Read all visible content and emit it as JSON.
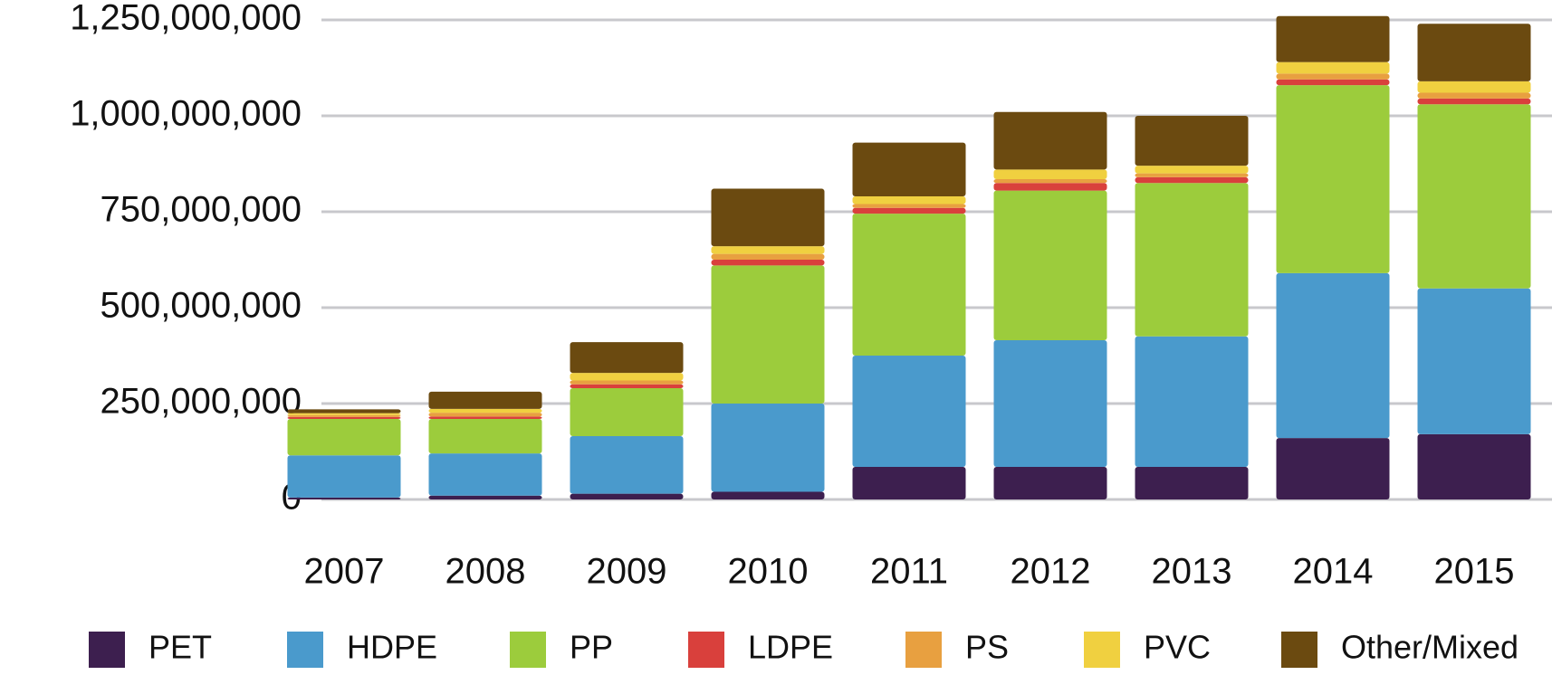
{
  "chart_data": {
    "type": "stacked_bar",
    "categories": [
      "2007",
      "2008",
      "2009",
      "2010",
      "2011",
      "2012",
      "2013",
      "2014",
      "2015"
    ],
    "series": [
      {
        "name": "PET",
        "color": "#3d1f4f",
        "values": [
          5000000,
          10000000,
          15000000,
          20000000,
          85000000,
          85000000,
          85000000,
          160000000,
          170000000
        ]
      },
      {
        "name": "HDPE",
        "color": "#4a9acc",
        "values": [
          110000000,
          110000000,
          150000000,
          230000000,
          290000000,
          330000000,
          340000000,
          430000000,
          380000000
        ]
      },
      {
        "name": "PP",
        "color": "#9ccc3c",
        "values": [
          95000000,
          90000000,
          125000000,
          360000000,
          370000000,
          390000000,
          400000000,
          490000000,
          480000000
        ]
      },
      {
        "name": "LDPE",
        "color": "#d9403c",
        "values": [
          5000000,
          6000000,
          10000000,
          15000000,
          15000000,
          20000000,
          15000000,
          15000000,
          15000000
        ]
      },
      {
        "name": "PS",
        "color": "#e8a040",
        "values": [
          5000000,
          10000000,
          10000000,
          15000000,
          10000000,
          10000000,
          10000000,
          15000000,
          15000000
        ]
      },
      {
        "name": "PVC",
        "color": "#f0d040",
        "values": [
          5000000,
          10000000,
          20000000,
          20000000,
          20000000,
          25000000,
          20000000,
          30000000,
          30000000
        ]
      },
      {
        "name": "Other/Mixed",
        "color": "#6b4a10",
        "values": [
          10000000,
          45000000,
          80000000,
          150000000,
          140000000,
          150000000,
          130000000,
          120000000,
          150000000
        ]
      }
    ],
    "ylim": [
      0,
      1250000000
    ],
    "yticks": [
      0,
      {
        "value": 250000000,
        "label": "250,000,000"
      },
      {
        "value": 500000000,
        "label": "500,000,000"
      },
      {
        "value": 750000000,
        "label": "750,000,000"
      },
      {
        "value": 1000000000,
        "label": "1,000,000,000"
      },
      {
        "value": 1250000000,
        "label": "1,250,000,000"
      }
    ],
    "grid": true,
    "legend": "bottom"
  }
}
